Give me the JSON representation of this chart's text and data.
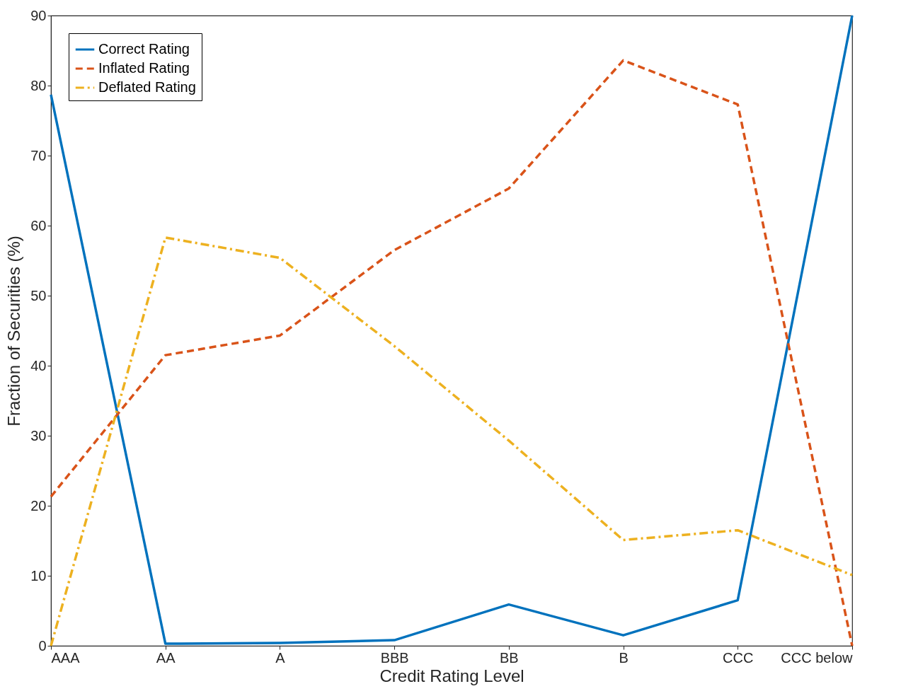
{
  "chart_data": {
    "type": "line",
    "xlabel": "Credit Rating Level",
    "ylabel": "Fraction of Securities (%)",
    "categories": [
      "AAA",
      "AA",
      "A",
      "BBB",
      "BB",
      "B",
      "CCC",
      "CCC below"
    ],
    "series": [
      {
        "name": "Correct Rating",
        "color": "#0072bd",
        "line_style": "solid",
        "values": [
          78.7,
          0.3,
          0.4,
          0.8,
          5.9,
          1.5,
          6.5,
          90
        ]
      },
      {
        "name": "Inflated Rating",
        "color": "#d95319",
        "line_style": "dashed",
        "values": [
          21.3,
          41.5,
          44.3,
          56.5,
          65.3,
          83.6,
          77.3,
          0
        ]
      },
      {
        "name": "Deflated Rating",
        "color": "#edb120",
        "line_style": "dashdot",
        "values": [
          0,
          58.3,
          55.4,
          42.8,
          29.3,
          15.1,
          16.5,
          10.1
        ]
      }
    ],
    "ylim": [
      0,
      90
    ],
    "yticks": [
      0,
      10,
      20,
      30,
      40,
      50,
      60,
      70,
      80,
      90
    ],
    "grid": false,
    "legend": "top left"
  }
}
